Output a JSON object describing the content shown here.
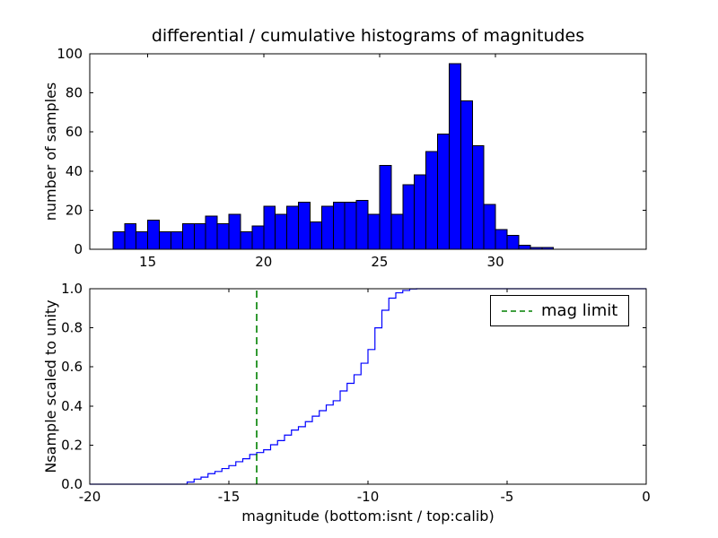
{
  "figure": {
    "background": "#ffffff"
  },
  "chart_data": [
    {
      "type": "bar",
      "name": "differential-histogram",
      "title": "differential / cumulative histograms of magnitudes",
      "ylabel": "number of samples",
      "xlim": [
        12.5,
        36.5
      ],
      "ylim": [
        0,
        100
      ],
      "grid": false,
      "xticks": [
        {
          "v": 15,
          "label": "15"
        },
        {
          "v": 20,
          "label": "20"
        },
        {
          "v": 25,
          "label": "25"
        },
        {
          "v": 30,
          "label": "30"
        }
      ],
      "yticks": [
        {
          "v": 0,
          "label": "0"
        },
        {
          "v": 20,
          "label": "20"
        },
        {
          "v": 40,
          "label": "40"
        },
        {
          "v": 60,
          "label": "60"
        },
        {
          "v": 80,
          "label": "80"
        },
        {
          "v": 100,
          "label": "100"
        }
      ],
      "bins": {
        "start": 13.5,
        "width": 0.5
      },
      "counts": [
        9,
        13,
        9,
        15,
        9,
        9,
        13,
        13,
        17,
        13,
        18,
        9,
        12,
        22,
        18,
        22,
        24,
        14,
        22,
        24,
        24,
        25,
        18,
        43,
        18,
        33,
        38,
        50,
        59,
        95,
        76,
        53,
        23,
        10,
        7,
        2,
        1,
        1
      ],
      "bar_color": "#0000ff",
      "bar_edge_color": "#000000"
    },
    {
      "type": "line",
      "name": "cumulative-histogram-scaled-to-unity",
      "ylabel": "Nsample scaled to unity",
      "xlabel": "magnitude (bottom:isnt / top:calib)",
      "xlim": [
        -20,
        0
      ],
      "ylim": [
        0,
        1
      ],
      "grid": false,
      "xticks": [
        {
          "v": -20,
          "label": "-20"
        },
        {
          "v": -15,
          "label": "-15"
        },
        {
          "v": -10,
          "label": "-10"
        },
        {
          "v": -5,
          "label": "-5"
        },
        {
          "v": 0,
          "label": "0"
        }
      ],
      "yticks": [
        {
          "v": 0,
          "label": "0.0"
        },
        {
          "v": 0.2,
          "label": "0.2"
        },
        {
          "v": 0.4,
          "label": "0.4"
        },
        {
          "v": 0.6,
          "label": "0.6"
        },
        {
          "v": 0.8,
          "label": "0.8"
        },
        {
          "v": 1,
          "label": "1.0"
        }
      ],
      "step": {
        "start": -16.5,
        "width": 0.25,
        "cumulative": [
          0.011,
          0.026,
          0.036,
          0.054,
          0.065,
          0.08,
          0.095,
          0.115,
          0.13,
          0.152,
          0.162,
          0.176,
          0.202,
          0.223,
          0.251,
          0.277,
          0.294,
          0.32,
          0.348,
          0.376,
          0.405,
          0.427,
          0.477,
          0.516,
          0.56,
          0.619,
          0.689,
          0.8,
          0.89,
          0.952,
          0.979,
          0.991,
          0.999,
          1.0
        ]
      },
      "line_color": "#0000ff",
      "vline": {
        "x": -14,
        "color": "#008000",
        "style": "dashed",
        "label": "mag limit"
      },
      "legend_position": "upper right"
    }
  ]
}
